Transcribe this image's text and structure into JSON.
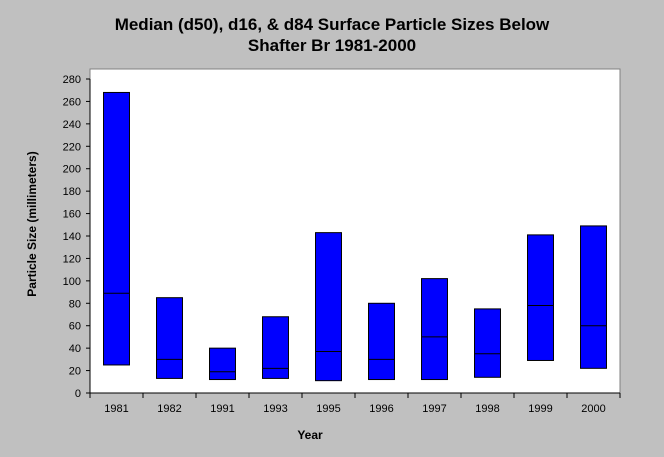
{
  "chart_data": {
    "type": "floating-bar",
    "title_lines": [
      "Median (d50), d16, & d84 Surface Particle Sizes Below",
      "Shafter Br 1981-2000"
    ],
    "xlabel": "Year",
    "ylabel": "Particle Size (millimeters)",
    "ylim": [
      0,
      280
    ],
    "ytick_step": 20,
    "grid": false,
    "bar_color": "#0000ff",
    "categories": [
      "1981",
      "1982",
      "1991",
      "1993",
      "1995",
      "1996",
      "1997",
      "1998",
      "1999",
      "2000"
    ],
    "series": [
      {
        "name": "d16",
        "values": [
          25,
          13,
          12,
          13,
          11,
          12,
          12,
          14,
          29,
          22
        ]
      },
      {
        "name": "d50",
        "values": [
          89,
          30,
          19,
          22,
          37,
          30,
          50,
          35,
          78,
          60
        ]
      },
      {
        "name": "d84",
        "values": [
          268,
          85,
          40,
          68,
          143,
          80,
          102,
          75,
          141,
          149
        ]
      }
    ]
  }
}
